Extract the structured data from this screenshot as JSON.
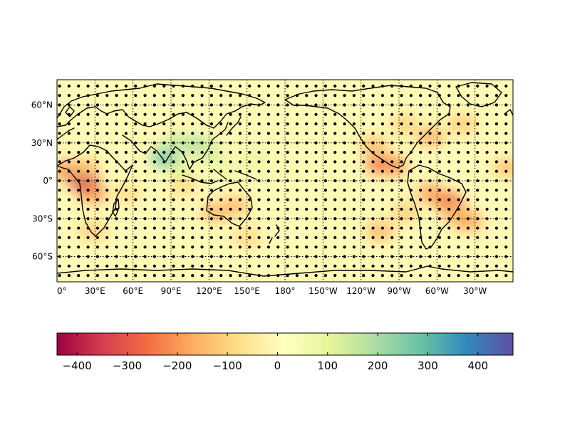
{
  "map": {
    "lon_range": [
      0,
      360
    ],
    "lat_range": [
      -80,
      80
    ],
    "grid": true,
    "background_value": 0,
    "lat_ticks": [
      {
        "value": 60,
        "label": "60°N"
      },
      {
        "value": 30,
        "label": "30°N"
      },
      {
        "value": 0,
        "label": "0°"
      },
      {
        "value": -30,
        "label": "30°S"
      },
      {
        "value": -60,
        "label": "60°S"
      }
    ],
    "lon_ticks": [
      {
        "value": 0,
        "label": "0°"
      },
      {
        "value": 30,
        "label": "30°E"
      },
      {
        "value": 60,
        "label": "60°E"
      },
      {
        "value": 90,
        "label": "90°E"
      },
      {
        "value": 120,
        "label": "120°E"
      },
      {
        "value": 150,
        "label": "150°E"
      },
      {
        "value": 180,
        "label": "180°"
      },
      {
        "value": 210,
        "label": "150°W"
      },
      {
        "value": 240,
        "label": "120°W"
      },
      {
        "value": 270,
        "label": "90°W"
      },
      {
        "value": 300,
        "label": "60°W"
      },
      {
        "value": 330,
        "label": "30°W"
      }
    ],
    "anomaly_regions": [
      {
        "lon": 7,
        "lat": 8,
        "value": -200
      },
      {
        "lon": 22,
        "lat": -2,
        "value": -380
      },
      {
        "lon": 28,
        "lat": -10,
        "value": -200
      },
      {
        "lon": 22,
        "lat": 10,
        "value": -140
      },
      {
        "lon": 85,
        "lat": 18,
        "value": 260
      },
      {
        "lon": 110,
        "lat": 28,
        "value": 200
      },
      {
        "lon": 95,
        "lat": 30,
        "value": 150
      },
      {
        "lon": 120,
        "lat": 22,
        "value": 130
      },
      {
        "lon": 100,
        "lat": 8,
        "value": 110
      },
      {
        "lon": 135,
        "lat": 10,
        "value": 80
      },
      {
        "lon": 155,
        "lat": 18,
        "value": 90
      },
      {
        "lon": 165,
        "lat": 5,
        "value": 60
      },
      {
        "lon": 100,
        "lat": -5,
        "value": -80
      },
      {
        "lon": 125,
        "lat": -25,
        "value": -150
      },
      {
        "lon": 140,
        "lat": -20,
        "value": -140
      },
      {
        "lon": 55,
        "lat": -10,
        "value": -80
      },
      {
        "lon": 150,
        "lat": -45,
        "value": -90
      },
      {
        "lon": 28,
        "lat": -40,
        "value": -110
      },
      {
        "lon": 255,
        "lat": 13,
        "value": -240
      },
      {
        "lon": 265,
        "lat": 12,
        "value": -200
      },
      {
        "lon": 250,
        "lat": 28,
        "value": -130
      },
      {
        "lon": 295,
        "lat": -10,
        "value": -180
      },
      {
        "lon": 310,
        "lat": -17,
        "value": -250
      },
      {
        "lon": 315,
        "lat": -28,
        "value": -140
      },
      {
        "lon": 325,
        "lat": -32,
        "value": -180
      },
      {
        "lon": 255,
        "lat": -40,
        "value": -150
      },
      {
        "lon": 275,
        "lat": -25,
        "value": -110
      },
      {
        "lon": 295,
        "lat": 35,
        "value": -150
      },
      {
        "lon": 275,
        "lat": 45,
        "value": -100
      },
      {
        "lon": 320,
        "lat": 45,
        "value": -110
      },
      {
        "lon": 355,
        "lat": 10,
        "value": -130
      },
      {
        "lon": 340,
        "lat": 0,
        "value": 40
      }
    ],
    "stipple": {
      "lon_start": 2,
      "lon_step": 7.5,
      "lat_start": -75,
      "lat_step": 7.5
    }
  },
  "colorbar": {
    "vmin": -440,
    "vmax": 470,
    "colors": [
      "#9e0142",
      "#d53e4f",
      "#f46d43",
      "#fdae61",
      "#fee08b",
      "#ffffbf",
      "#e6f598",
      "#abdda4",
      "#66c2a5",
      "#3288bd",
      "#5e4fa2"
    ],
    "ticks": [
      {
        "value": -400,
        "label": "−400"
      },
      {
        "value": -300,
        "label": "−300"
      },
      {
        "value": -200,
        "label": "−200"
      },
      {
        "value": -100,
        "label": "−100"
      },
      {
        "value": 0,
        "label": "0"
      },
      {
        "value": 100,
        "label": "100"
      },
      {
        "value": 200,
        "label": "200"
      },
      {
        "value": 300,
        "label": "300"
      },
      {
        "value": 400,
        "label": "400"
      }
    ]
  }
}
